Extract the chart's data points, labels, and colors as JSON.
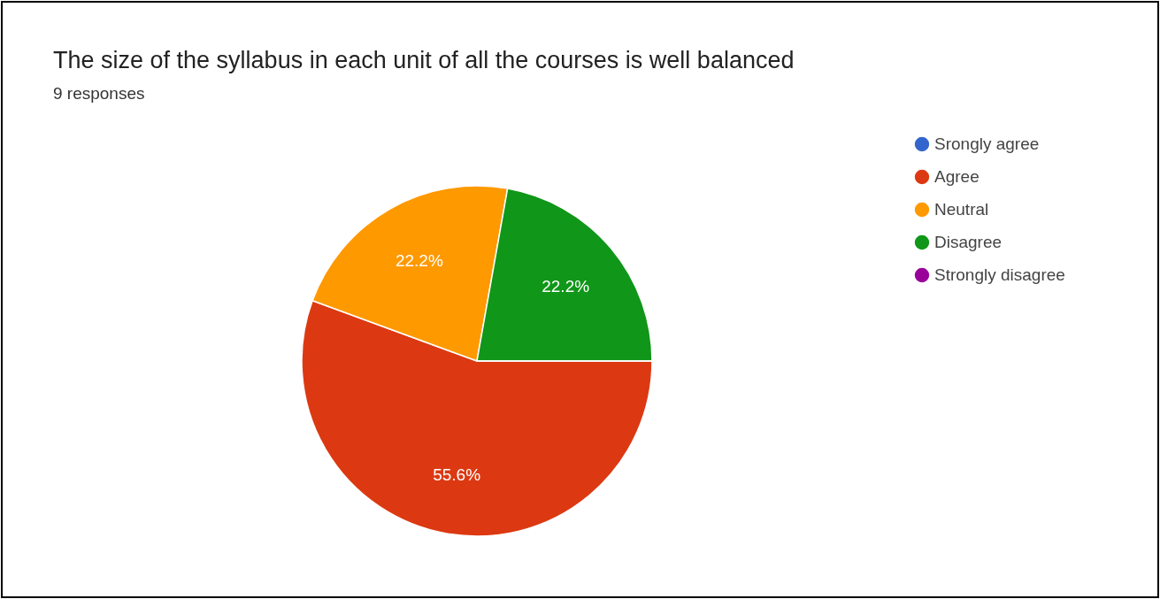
{
  "chart_data": {
    "type": "pie",
    "title": "The size of the syllabus in each unit of all the courses is well balanced",
    "subtitle": "9 responses",
    "categories": [
      "Srongly agree",
      "Agree",
      "Neutral",
      "Disagree",
      "Strongly disagree"
    ],
    "values": [
      0,
      55.6,
      22.2,
      22.2,
      0
    ],
    "colors": [
      "#3366cc",
      "#dc3912",
      "#ff9900",
      "#109618",
      "#990099"
    ],
    "value_labels": [
      null,
      "55.6%",
      "22.2%",
      "22.2%",
      null
    ],
    "legend": "right"
  }
}
